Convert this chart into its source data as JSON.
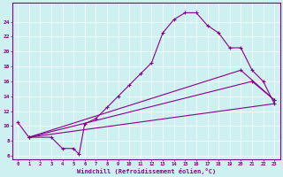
{
  "xlabel": "Windchill (Refroidissement éolien,°C)",
  "bg_color": "#cff0f0",
  "line_color": "#880088",
  "xlim": [
    -0.5,
    23.5
  ],
  "ylim": [
    5.5,
    26.5
  ],
  "xticks": [
    0,
    1,
    2,
    3,
    4,
    5,
    6,
    7,
    8,
    9,
    10,
    11,
    12,
    13,
    14,
    15,
    16,
    17,
    18,
    19,
    20,
    21,
    22,
    23
  ],
  "yticks": [
    6,
    8,
    10,
    12,
    14,
    16,
    18,
    20,
    22,
    24
  ],
  "curve1_x": [
    0,
    1,
    3,
    4,
    5,
    5.5,
    6,
    7,
    8,
    9,
    10,
    11,
    12,
    13,
    14,
    15,
    16,
    17,
    18,
    19,
    20,
    21,
    22,
    23
  ],
  "curve1_y": [
    10.5,
    8.5,
    8.5,
    7.0,
    7.0,
    6.2,
    10.3,
    11.0,
    12.5,
    14.0,
    15.5,
    17.0,
    18.5,
    22.5,
    24.3,
    25.2,
    25.2,
    23.5,
    22.5,
    20.5,
    20.5,
    17.5,
    16.0,
    13.0
  ],
  "curve2_x": [
    1,
    23
  ],
  "curve2_y": [
    8.5,
    13.0
  ],
  "curve3_x": [
    1,
    21,
    23
  ],
  "curve3_y": [
    8.5,
    16.0,
    13.5
  ],
  "curve4_x": [
    1,
    20,
    23
  ],
  "curve4_y": [
    8.5,
    17.5,
    13.5
  ]
}
